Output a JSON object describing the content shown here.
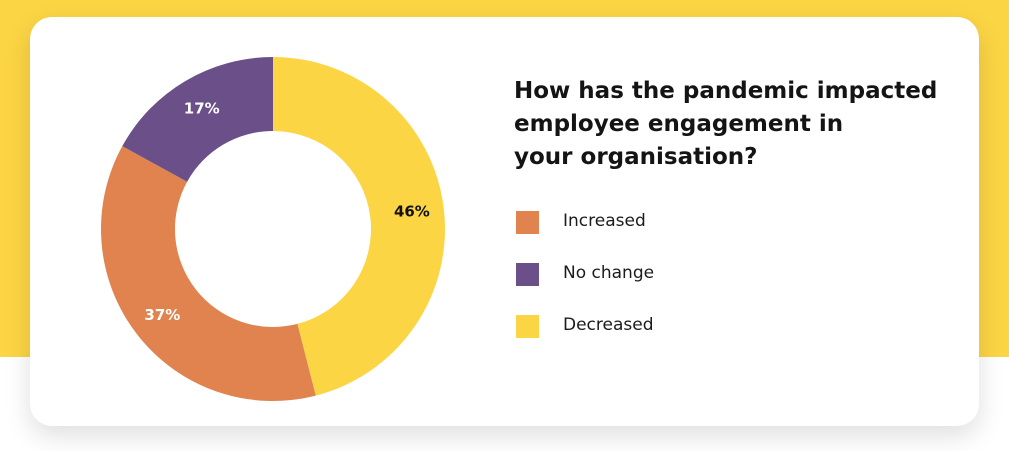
{
  "colors": {
    "background": "#fbd544",
    "card": "#ffffff",
    "increased": "#e0834f",
    "no_change": "#6b4f88",
    "decreased": "#fbd544"
  },
  "title_lines": [
    "How has the pandemic impacted",
    "employee engagement in",
    "your organisation?"
  ],
  "chart_data": {
    "type": "pie",
    "style": "donut",
    "title": "How has the pandemic impacted employee engagement in your organisation?",
    "unit": "%",
    "slices": [
      {
        "label": "Decreased",
        "value": 46,
        "display": "46%",
        "color": "#fbd544",
        "label_color": "#111111"
      },
      {
        "label": "Increased",
        "value": 37,
        "display": "37%",
        "color": "#e0834f",
        "label_color": "#ffffff"
      },
      {
        "label": "No change",
        "value": 17,
        "display": "17%",
        "color": "#6b4f88",
        "label_color": "#ffffff"
      }
    ],
    "legend": [
      {
        "label": "Increased",
        "color": "#e0834f"
      },
      {
        "label": "No change",
        "color": "#6b4f88"
      },
      {
        "label": "Decreased",
        "color": "#fbd544"
      }
    ],
    "legend_position": "right"
  }
}
